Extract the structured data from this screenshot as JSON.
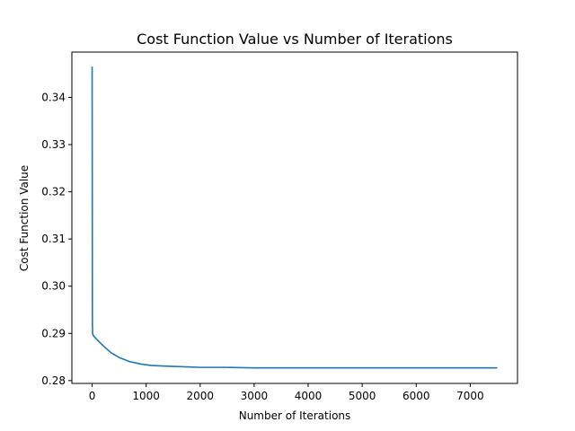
{
  "chart_data": {
    "type": "line",
    "title": "Cost Function Value vs Number of Iterations",
    "xlabel": "Number of Iterations",
    "ylabel": "Cost Function Value",
    "xlim": [
      -375,
      7875
    ],
    "ylim": [
      0.2794,
      0.3496
    ],
    "xticks": [
      0,
      1000,
      2000,
      3000,
      4000,
      5000,
      6000,
      7000
    ],
    "xtick_labels": [
      "0",
      "1000",
      "2000",
      "3000",
      "4000",
      "5000",
      "6000",
      "7000"
    ],
    "yticks": [
      0.28,
      0.29,
      0.3,
      0.31,
      0.32,
      0.33,
      0.34
    ],
    "ytick_labels": [
      "0.28",
      "0.29",
      "0.30",
      "0.31",
      "0.32",
      "0.33",
      "0.34"
    ],
    "grid": false,
    "series": [
      {
        "color": "#1f77b4",
        "x": [
          0,
          5,
          10,
          20,
          40,
          80,
          150,
          250,
          350,
          500,
          700,
          900,
          1100,
          1300,
          1500,
          1750,
          2000,
          2500,
          3000,
          3500,
          4000,
          5000,
          6000,
          7000,
          7500
        ],
        "y": [
          0.3465,
          0.292,
          0.2898,
          0.2896,
          0.2893,
          0.2888,
          0.288,
          0.2869,
          0.2859,
          0.2849,
          0.284,
          0.2835,
          0.2832,
          0.2831,
          0.283,
          0.2829,
          0.2828,
          0.2828,
          0.2827,
          0.2827,
          0.2827,
          0.2827,
          0.2827,
          0.2827,
          0.2827
        ]
      }
    ]
  }
}
